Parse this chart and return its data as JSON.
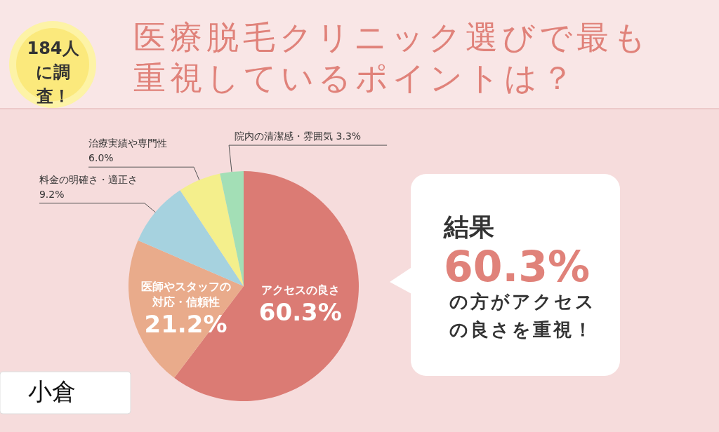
{
  "chart_data": {
    "type": "pie",
    "title": "医療脱毛クリニック選びで最も重視しているポイントは？",
    "categories": [
      "アクセスの良さ",
      "医師やスタッフの対応・信頼性",
      "料金の明確さ・適正さ",
      "治療実績や専門性",
      "院内の清潔感・雰囲気"
    ],
    "values": [
      60.3,
      21.2,
      9.2,
      6.0,
      3.3
    ],
    "colors": [
      "#db7b74",
      "#e9ab8b",
      "#a6d2df",
      "#f4ef8c",
      "#a3dfb6"
    ],
    "value_labels": [
      "60.3%",
      "21.2%",
      "9.2%",
      "6.0%",
      "3.3%"
    ],
    "annotations": [
      "184人に調査！",
      "結果",
      "60.3%",
      "の方がアクセスの良さを重視！",
      "小倉"
    ]
  }
}
